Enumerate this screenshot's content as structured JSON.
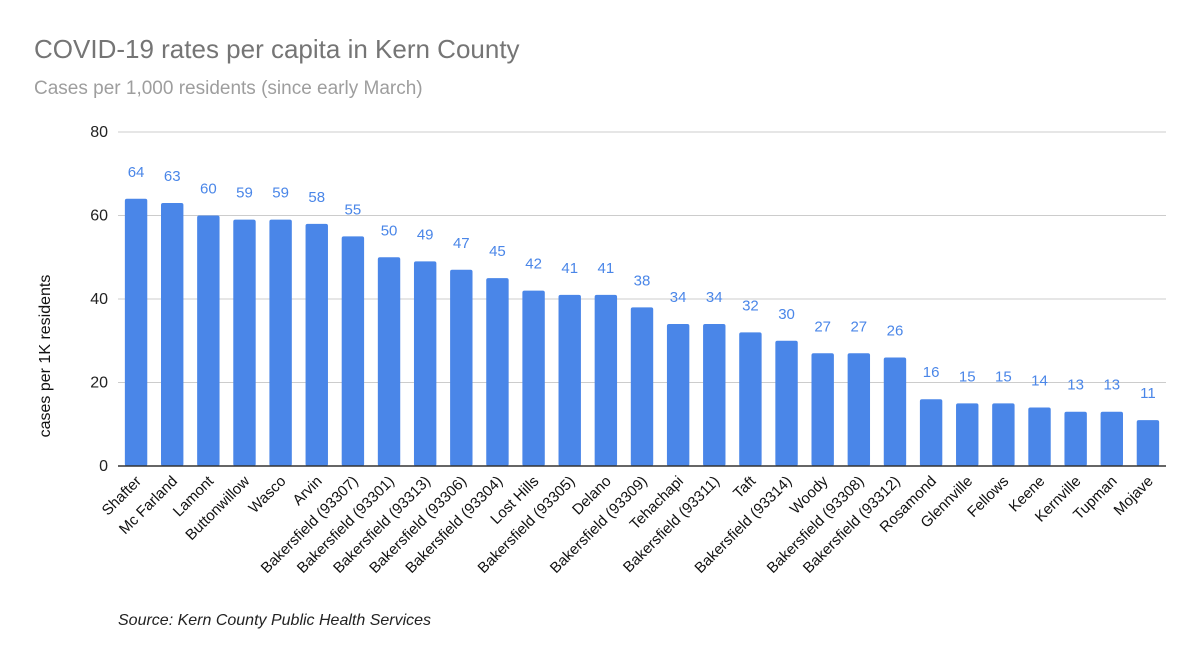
{
  "chart_data": {
    "type": "bar",
    "title": "COVID-19 rates per capita in Kern County",
    "subtitle": "Cases per 1,000 residents (since early March)",
    "ylabel": "cases per 1K residents",
    "xlabel": "",
    "ylim": [
      0,
      80
    ],
    "yticks": [
      0,
      20,
      40,
      60,
      80
    ],
    "grid": true,
    "bar_color": "#4a86e8",
    "label_color": "#4a86e8",
    "categories": [
      "Shafter",
      "Mc Farland",
      "Lamont",
      "Buttonwillow",
      "Wasco",
      "Arvin",
      "Bakersfield (93307)",
      "Bakersfield (93301)",
      "Bakersfield (93313)",
      "Bakersfield (93306)",
      "Bakersfield (93304)",
      "Lost Hills",
      "Bakersfield (93305)",
      "Delano",
      "Bakersfield (93309)",
      "Tehachapi",
      "Bakersfield (93311)",
      "Taft",
      "Bakersfield (93314)",
      "Woody",
      "Bakersfield (93308)",
      "Bakersfield (93312)",
      "Rosamond",
      "Glennville",
      "Fellows",
      "Keene",
      "Kernville",
      "Tupman",
      "Mojave"
    ],
    "values": [
      64,
      63,
      60,
      59,
      59,
      58,
      55,
      50,
      49,
      47,
      45,
      42,
      41,
      41,
      38,
      34,
      34,
      32,
      30,
      27,
      27,
      26,
      16,
      15,
      15,
      14,
      13,
      13,
      11
    ],
    "source": "Source: Kern County Public Health Services"
  }
}
